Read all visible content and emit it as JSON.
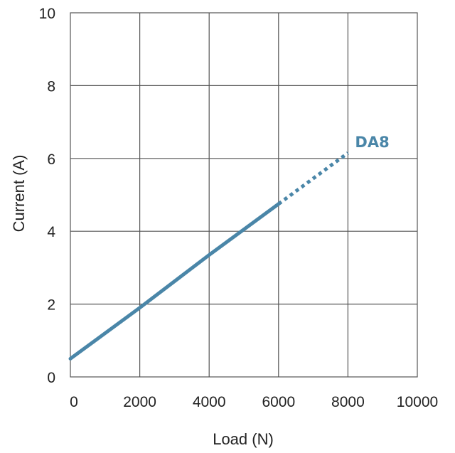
{
  "chart_data": {
    "type": "line",
    "title": "",
    "xlabel": "Load (N)",
    "ylabel": "Current (A)",
    "xlim": [
      0,
      10000
    ],
    "ylim": [
      0,
      10
    ],
    "x_ticks": [
      0,
      2000,
      4000,
      6000,
      8000,
      10000
    ],
    "y_ticks": [
      0,
      2,
      4,
      6,
      8,
      10
    ],
    "x_tick_labels": [
      "0",
      "2000",
      "4000",
      "6000",
      "8000",
      "10000"
    ],
    "y_tick_labels": [
      "0",
      "2",
      "4",
      "6",
      "8",
      "10"
    ],
    "grid": true,
    "series": [
      {
        "name": "DA8",
        "color": "#4a86a8",
        "solid_points": [
          {
            "x": 0,
            "y": 0.5
          },
          {
            "x": 2000,
            "y": 1.9
          },
          {
            "x": 4000,
            "y": 3.35
          },
          {
            "x": 6000,
            "y": 4.75
          }
        ],
        "dotted_points": [
          {
            "x": 6000,
            "y": 4.75
          },
          {
            "x": 8000,
            "y": 6.15
          }
        ]
      }
    ]
  }
}
